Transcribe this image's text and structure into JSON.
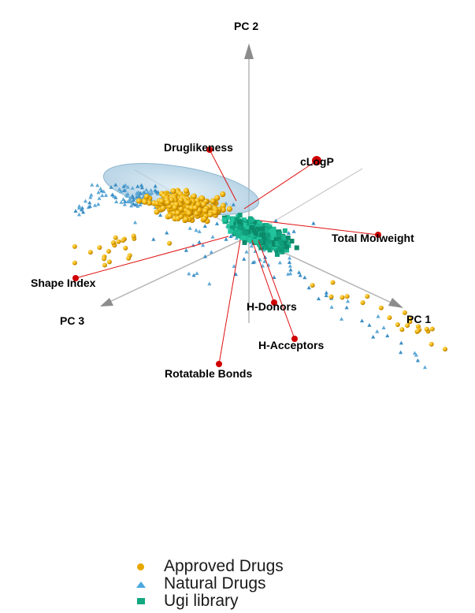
{
  "chart_data": {
    "type": "scatter",
    "title": "",
    "axes": [
      {
        "name": "PC 1"
      },
      {
        "name": "PC 2"
      },
      {
        "name": "PC 3"
      }
    ],
    "loading_vectors": [
      {
        "name": "Druglikeness"
      },
      {
        "name": "cLogP"
      },
      {
        "name": "Total Molweight"
      },
      {
        "name": "Shape Index"
      },
      {
        "name": "H-Donors"
      },
      {
        "name": "H-Acceptors"
      },
      {
        "name": "Rotatable Bonds"
      }
    ],
    "series": [
      {
        "name": "Approved Drugs",
        "color": "#e8a800",
        "marker": "circle"
      },
      {
        "name": "Natural Drugs",
        "color": "#4aa8e0",
        "marker": "triangle"
      },
      {
        "name": "Ugi library",
        "color": "#12a882",
        "marker": "square"
      }
    ],
    "legend_position": "bottom-center"
  }
}
